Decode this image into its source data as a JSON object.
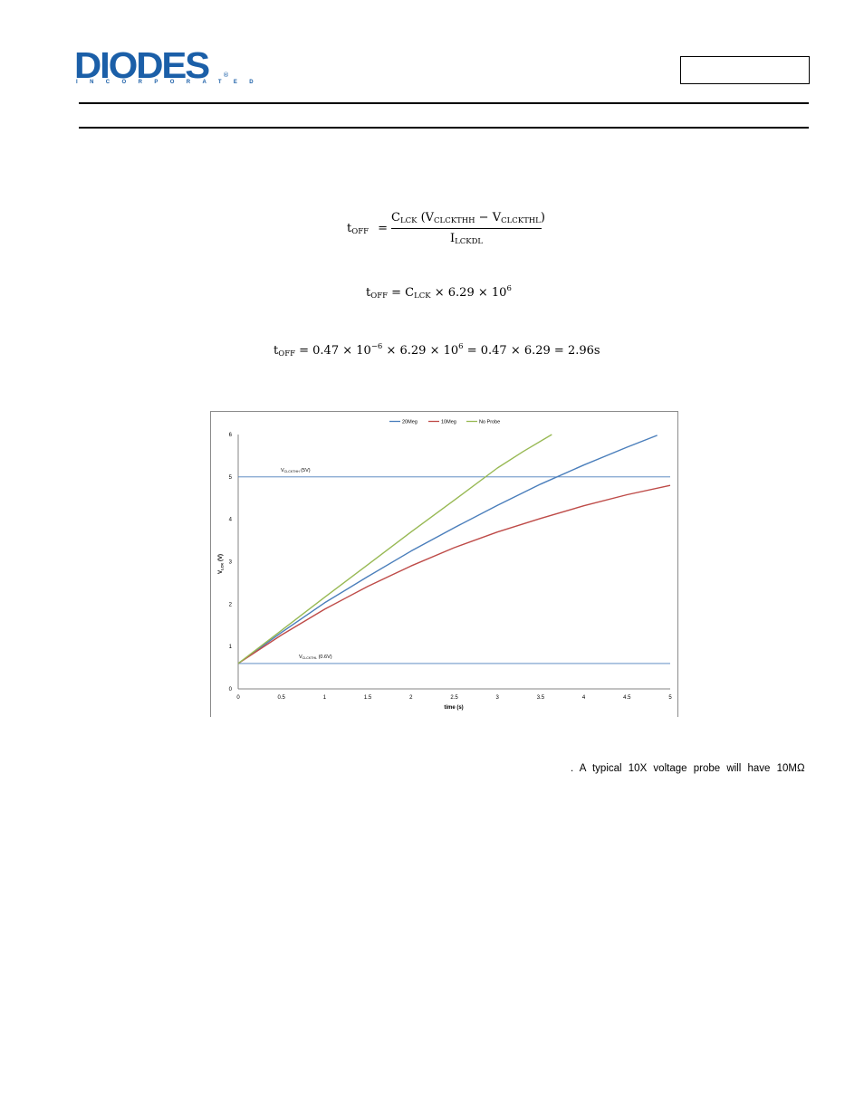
{
  "brand": {
    "name": "DIODES",
    "tagline": "INCORPORATED",
    "reg_mark": "®",
    "color": "#1b5fa8"
  },
  "equations": {
    "eq1": {
      "lhs": "t",
      "lhs_sub": "OFF",
      "eq": "=",
      "num_c": "C",
      "num_c_sub": "LCK",
      "num_open": " (V",
      "num_v1_sub": "CLCKTHH",
      "num_minus": " − V",
      "num_v2_sub": "CLCKTHL",
      "num_close": ")",
      "den": "I",
      "den_sub": "LCKDL"
    },
    "eq2": {
      "lhs": "t",
      "lhs_sub": "OFF",
      "eq": " = ",
      "c": "C",
      "c_sub": "LCK",
      "rest": " × 6.29 × 10",
      "exp": "6"
    },
    "eq3": {
      "lhs": "t",
      "lhs_sub": "OFF",
      "part1": " = 0.47 × 10",
      "exp1": "−6",
      "part2": " × 6.29 × 10",
      "exp2": "6",
      "part3": " = 0.47 × 6.29 = 2.96s"
    }
  },
  "chart_data": {
    "type": "line",
    "xlabel": "time (s)",
    "ylabel_main": "V",
    "ylabel_sub": "LCK",
    "ylabel_unit": " (V)",
    "xlim": [
      0,
      5
    ],
    "ylim": [
      0,
      6
    ],
    "xticks": [
      "0",
      "0.5",
      "1",
      "1.5",
      "2",
      "2.5",
      "3",
      "3.5",
      "4",
      "4.5",
      "5"
    ],
    "yticks": [
      "0",
      "1",
      "2",
      "3",
      "4",
      "5",
      "6"
    ],
    "legend_position": "top-center",
    "grid": false,
    "series": [
      {
        "name": "20Meg",
        "color": "#4a7ebb",
        "x": [
          0,
          0.5,
          1,
          1.5,
          2,
          2.5,
          3,
          3.5,
          4,
          4.5,
          4.85
        ],
        "y": [
          0.6,
          1.33,
          2.03,
          2.65,
          3.25,
          3.8,
          4.33,
          4.83,
          5.28,
          5.7,
          5.98
        ]
      },
      {
        "name": "10Meg",
        "color": "#be4b48",
        "x": [
          0,
          0.5,
          1,
          1.5,
          2,
          2.5,
          3,
          3.5,
          4,
          4.5,
          5
        ],
        "y": [
          0.6,
          1.27,
          1.88,
          2.42,
          2.9,
          3.33,
          3.7,
          4.02,
          4.32,
          4.58,
          4.8
        ]
      },
      {
        "name": "No Probe",
        "color": "#98b954",
        "x": [
          0,
          0.5,
          1,
          1.5,
          2,
          2.5,
          3,
          3.3,
          3.63
        ],
        "y": [
          0.6,
          1.38,
          2.16,
          2.93,
          3.7,
          4.45,
          5.21,
          5.6,
          6.0
        ]
      }
    ],
    "reference_lines": [
      {
        "y": 5,
        "label_main": "V",
        "label_sub": "CLCKTHH",
        "label_rest": " (5V)",
        "color": "#4a7ebb"
      },
      {
        "y": 0.6,
        "label_main": "V",
        "label_sub": "CLCKTHL",
        "label_rest": " (0.6V)",
        "color": "#4a7ebb"
      }
    ]
  },
  "body_text": ". A typical 10X voltage probe will have 10MΩ"
}
